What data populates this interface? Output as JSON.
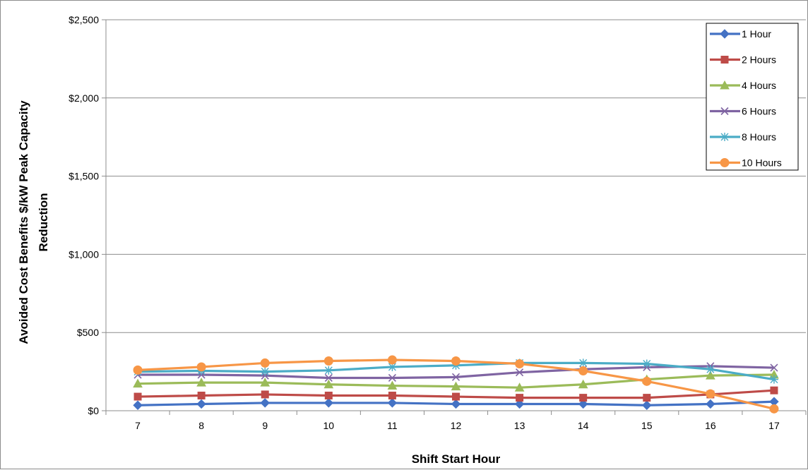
{
  "chart_data": {
    "type": "line",
    "title": "",
    "xlabel": "Shift Start Hour",
    "ylabel": "Avoided Cost Benefits $/kW Peak Capacity Reduction",
    "ylabel_lines": [
      "Avoided Cost Benefits $/kW Peak Capacity",
      "Reduction"
    ],
    "categories": [
      "7",
      "8",
      "9",
      "10",
      "11",
      "12",
      "13",
      "14",
      "15",
      "16",
      "17"
    ],
    "ylim": [
      0,
      2500
    ],
    "yticks": [
      0,
      500,
      1000,
      1500,
      2000,
      2500
    ],
    "ytick_labels": [
      "$0",
      "$500",
      "$1,000",
      "$1,500",
      "$2,000",
      "$2,500"
    ],
    "grid": true,
    "legend_position": "top-right",
    "series": [
      {
        "name": "1 Hour",
        "color": "#4472c4",
        "marker": "diamond",
        "values": [
          35,
          43,
          50,
          50,
          50,
          43,
          43,
          43,
          35,
          43,
          58
        ]
      },
      {
        "name": "2 Hours",
        "color": "#be4b48",
        "marker": "square",
        "values": [
          90,
          97,
          104,
          97,
          97,
          90,
          83,
          83,
          83,
          104,
          130
        ]
      },
      {
        "name": "4 Hours",
        "color": "#9bbb59",
        "marker": "triangle",
        "values": [
          173,
          180,
          180,
          168,
          160,
          155,
          148,
          168,
          200,
          225,
          230
        ]
      },
      {
        "name": "6 Hours",
        "color": "#7f64a2",
        "marker": "x",
        "values": [
          230,
          230,
          225,
          210,
          210,
          215,
          245,
          265,
          278,
          285,
          275
        ]
      },
      {
        "name": "8 Hours",
        "color": "#4bacc6",
        "marker": "star",
        "values": [
          250,
          255,
          250,
          258,
          280,
          290,
          305,
          305,
          300,
          265,
          200
        ]
      },
      {
        "name": "10 Hours",
        "color": "#f79646",
        "marker": "circle",
        "values": [
          260,
          280,
          305,
          318,
          325,
          318,
          300,
          255,
          188,
          108,
          12
        ]
      }
    ]
  }
}
